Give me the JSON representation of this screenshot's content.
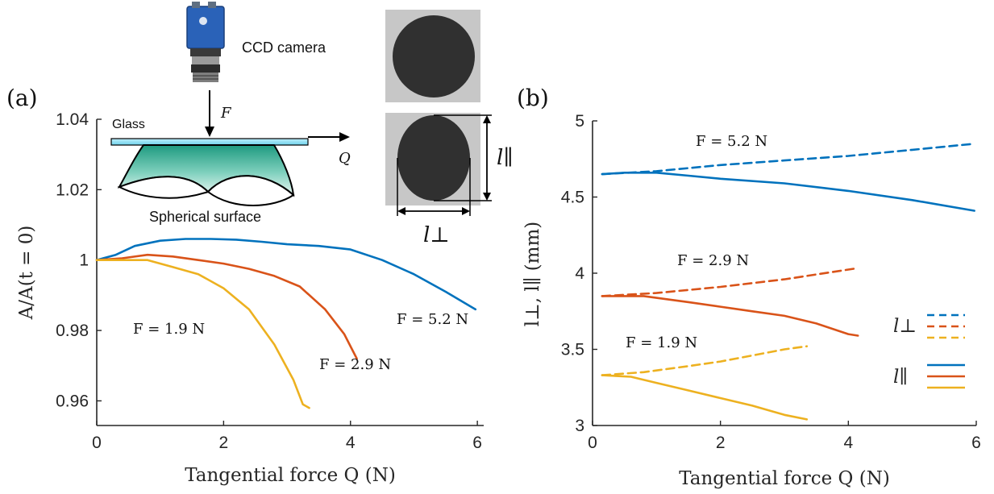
{
  "colors": {
    "blue": "#0072BD",
    "orange": "#D95319",
    "yellow": "#EDB120"
  },
  "chart_data": [
    {
      "panel": "(a)",
      "type": "line",
      "xlabel": "Tangential force Q (N)",
      "ylabel": "A/A(t = 0)",
      "xlim": [
        0,
        6.1
      ],
      "ylim": [
        0.953,
        1.04
      ],
      "xticks": [
        "0",
        "2",
        "4",
        "6"
      ],
      "yticks": [
        "0.96",
        "0.98",
        "1",
        "1.02",
        "1.04"
      ],
      "series": [
        {
          "name": "F = 5.2 N",
          "color": "blue",
          "x": [
            0,
            0.3,
            0.6,
            1.0,
            1.4,
            1.8,
            2.2,
            2.6,
            3.0,
            3.5,
            4.0,
            4.5,
            5.0,
            5.5,
            5.97
          ],
          "y": [
            1.0,
            1.0015,
            1.004,
            1.0055,
            1.006,
            1.006,
            1.0058,
            1.0052,
            1.0045,
            1.004,
            1.003,
            1.0,
            0.996,
            0.991,
            0.986
          ]
        },
        {
          "name": "F = 2.9 N",
          "color": "orange",
          "x": [
            0,
            0.4,
            0.8,
            1.2,
            1.6,
            2.0,
            2.4,
            2.8,
            3.2,
            3.6,
            3.9,
            4.1
          ],
          "y": [
            1.0,
            1.0005,
            1.0015,
            1.001,
            1.0,
            0.999,
            0.9975,
            0.9955,
            0.9925,
            0.986,
            0.979,
            0.972
          ]
        },
        {
          "name": "F = 1.9 N",
          "color": "yellow",
          "x": [
            0,
            0.4,
            0.8,
            1.2,
            1.6,
            2.0,
            2.4,
            2.8,
            3.1,
            3.25,
            3.35
          ],
          "y": [
            1.0,
            1.0,
            1.0,
            0.998,
            0.996,
            0.992,
            0.986,
            0.976,
            0.966,
            0.959,
            0.958
          ]
        }
      ],
      "annotations": [
        "F = 5.2 N",
        "F = 2.9 N",
        "F = 1.9 N"
      ]
    },
    {
      "panel": "(b)",
      "type": "line",
      "xlabel": "Tangential force Q (N)",
      "ylabel": "l⊥, l∥ (mm)",
      "xlim": [
        0,
        6
      ],
      "ylim": [
        3,
        5
      ],
      "xticks": [
        "0",
        "2",
        "4",
        "6"
      ],
      "yticks": [
        "3",
        "3.5",
        "4",
        "4.5",
        "5"
      ],
      "series": [
        {
          "name": "l⊥",
          "force": "F = 5.2 N",
          "color": "blue",
          "dash": true,
          "x": [
            0.15,
            1.0,
            2.0,
            3.0,
            4.0,
            5.0,
            5.97
          ],
          "y": [
            4.65,
            4.67,
            4.71,
            4.74,
            4.77,
            4.81,
            4.85
          ]
        },
        {
          "name": "l∥",
          "force": "F = 5.2 N",
          "color": "blue",
          "dash": false,
          "x": [
            0.15,
            0.5,
            1.0,
            1.5,
            2.0,
            3.0,
            4.0,
            5.0,
            5.97
          ],
          "y": [
            4.65,
            4.66,
            4.66,
            4.64,
            4.62,
            4.59,
            4.54,
            4.48,
            4.41
          ]
        },
        {
          "name": "l⊥",
          "force": "F = 2.9 N",
          "color": "orange",
          "dash": true,
          "x": [
            0.15,
            1.0,
            2.0,
            3.0,
            4.1
          ],
          "y": [
            3.85,
            3.87,
            3.91,
            3.96,
            4.03
          ]
        },
        {
          "name": "l∥",
          "force": "F = 2.9 N",
          "color": "orange",
          "dash": false,
          "x": [
            0.15,
            0.8,
            1.5,
            2.0,
            2.5,
            3.0,
            3.5,
            4.0,
            4.15
          ],
          "y": [
            3.85,
            3.85,
            3.81,
            3.78,
            3.75,
            3.72,
            3.67,
            3.6,
            3.59
          ]
        },
        {
          "name": "l⊥",
          "force": "F = 1.9 N",
          "color": "yellow",
          "dash": true,
          "x": [
            0.15,
            0.8,
            1.5,
            2.0,
            2.5,
            3.0,
            3.35
          ],
          "y": [
            3.33,
            3.35,
            3.39,
            3.42,
            3.46,
            3.5,
            3.52
          ]
        },
        {
          "name": "l∥",
          "force": "F = 1.9 N",
          "color": "yellow",
          "dash": false,
          "x": [
            0.15,
            0.6,
            1.0,
            1.5,
            2.0,
            2.5,
            3.0,
            3.35
          ],
          "y": [
            3.33,
            3.32,
            3.28,
            3.23,
            3.18,
            3.13,
            3.07,
            3.04
          ]
        }
      ],
      "annotations": [
        "F = 5.2 N",
        "F = 2.9 N",
        "F = 1.9 N"
      ],
      "legend": [
        "l⊥",
        "l∥"
      ],
      "legend_position": "right"
    }
  ],
  "inset": {
    "camera_label": "CCD camera",
    "force_label": "F",
    "tangential_label": "Q",
    "glass_label": "Glass",
    "surface_label": "Spherical surface",
    "l_par_label": "l∥",
    "l_perp_label": "l⊥"
  }
}
